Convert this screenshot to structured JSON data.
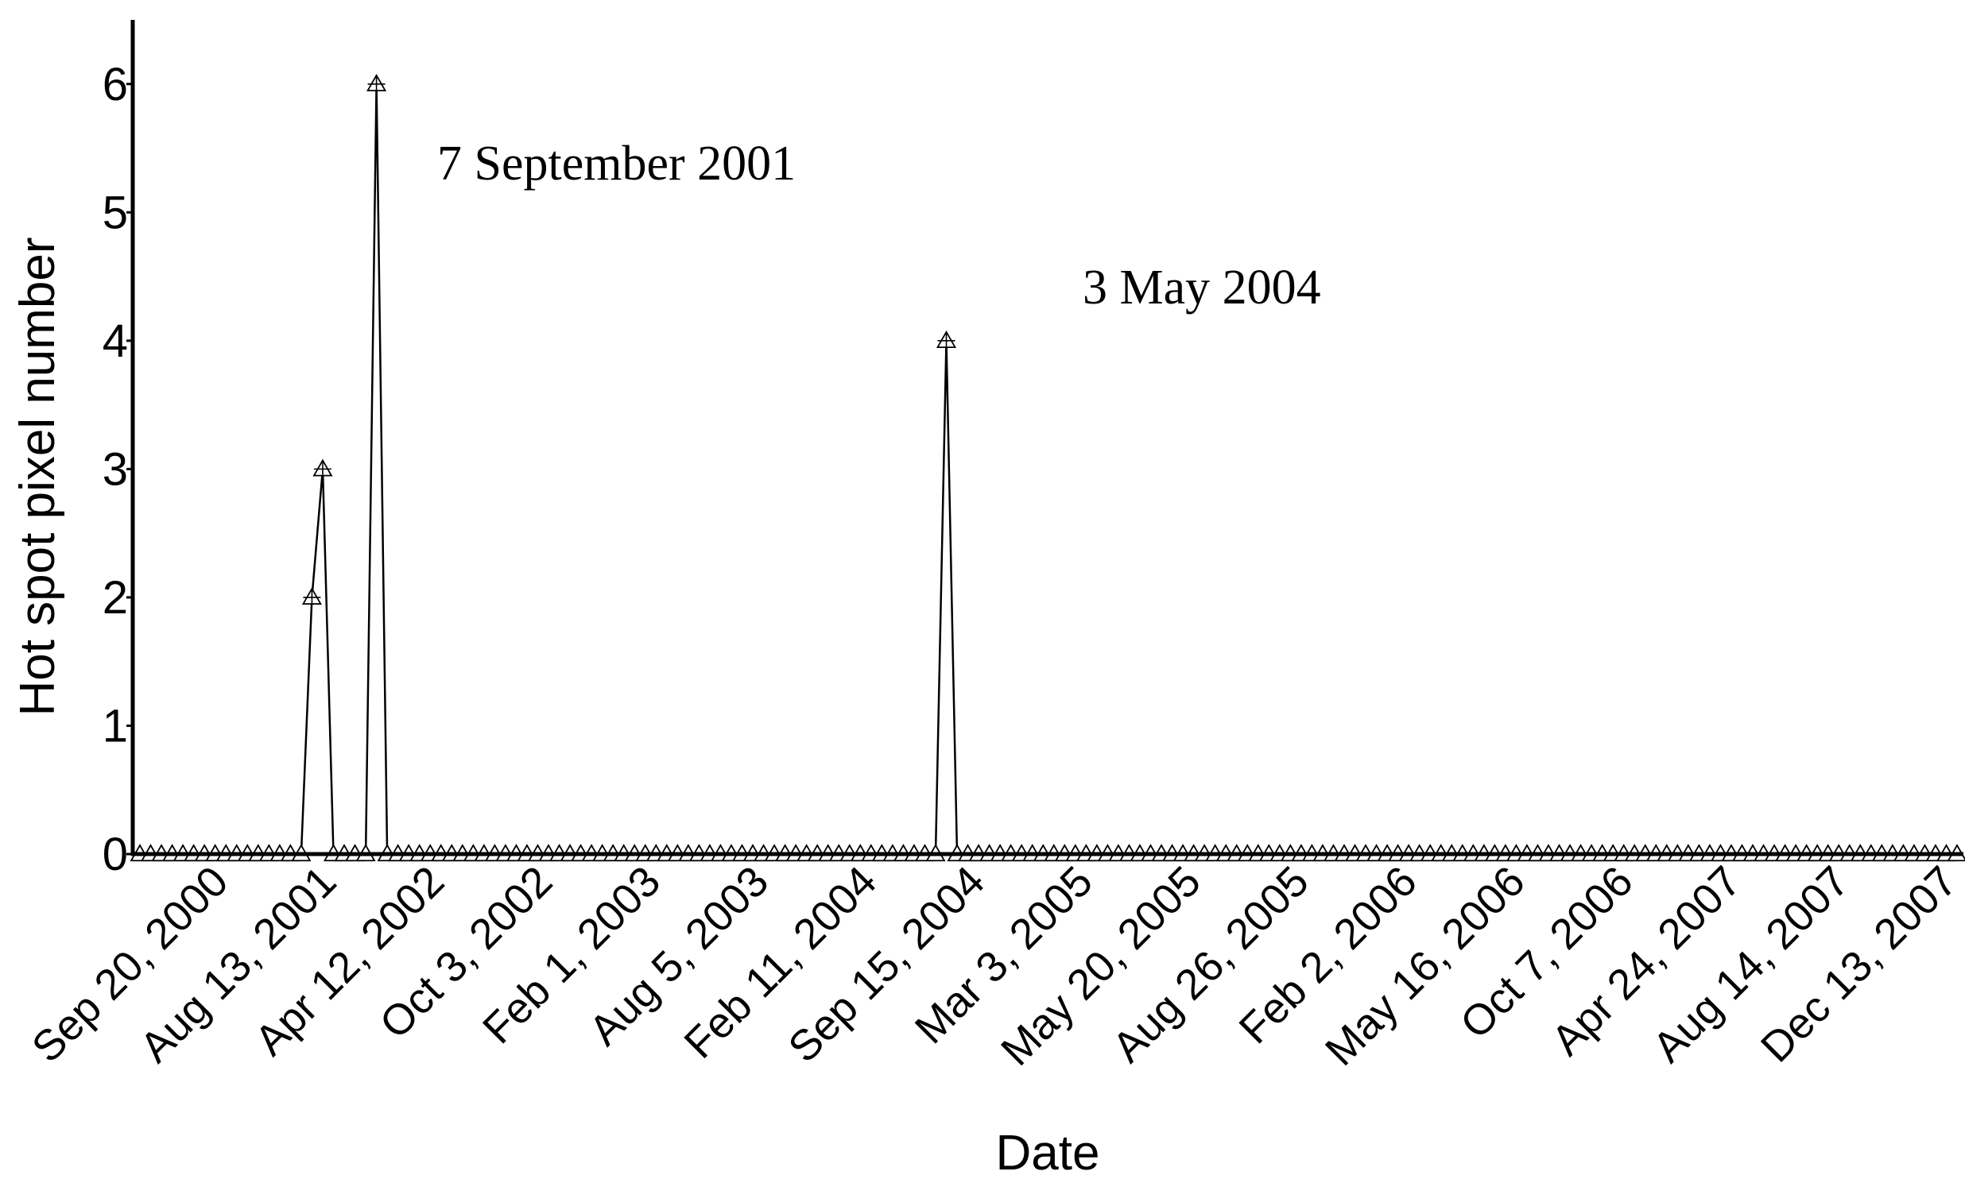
{
  "chart_data": {
    "type": "line",
    "title": "",
    "xlabel": "Date",
    "ylabel": "Hot spot pixel number",
    "ylim": [
      0,
      6.5
    ],
    "yticks": [
      0,
      1,
      2,
      3,
      4,
      5,
      6
    ],
    "x_tick_labels": [
      "Sep 20, 2000",
      "Aug 13, 2001",
      "Apr 12, 2002",
      "Oct 3, 2002",
      "Feb 1, 2003",
      "Aug 5, 2003",
      "Feb 11, 2004",
      "Sep 15, 2004",
      "Mar 3, 2005",
      "May 20, 2005",
      "Aug 26, 2005",
      "Feb 2, 2006",
      "May 16, 2006",
      "Oct 7, 2006",
      "Apr 24, 2007",
      "Aug 14, 2007",
      "Dec 13, 2007"
    ],
    "grid": false,
    "marker": "triangle",
    "series_color": "#000000",
    "observation_count": 170,
    "series": [
      {
        "values": [
          0,
          0,
          0,
          0,
          0,
          0,
          0,
          0,
          0,
          0,
          0,
          0,
          0,
          0,
          0,
          0,
          2,
          3,
          0,
          0,
          0,
          0,
          6,
          0,
          0,
          0,
          0,
          0,
          0,
          0,
          0,
          0,
          0,
          0,
          0,
          0,
          0,
          0,
          0,
          0,
          0,
          0,
          0,
          0,
          0,
          0,
          0,
          0,
          0,
          0,
          0,
          0,
          0,
          0,
          0,
          0,
          0,
          0,
          0,
          0,
          0,
          0,
          0,
          0,
          0,
          0,
          0,
          0,
          0,
          0,
          0,
          0,
          0,
          0,
          0,
          4,
          0,
          0,
          0,
          0,
          0,
          0,
          0,
          0,
          0,
          0,
          0,
          0,
          0,
          0,
          0,
          0,
          0,
          0,
          0,
          0,
          0,
          0,
          0,
          0,
          0,
          0,
          0,
          0,
          0,
          0,
          0,
          0,
          0,
          0,
          0,
          0,
          0,
          0,
          0,
          0,
          0,
          0,
          0,
          0,
          0,
          0,
          0,
          0,
          0,
          0,
          0,
          0,
          0,
          0,
          0,
          0,
          0,
          0,
          0,
          0,
          0,
          0,
          0,
          0,
          0,
          0,
          0,
          0,
          0,
          0,
          0,
          0,
          0,
          0,
          0,
          0,
          0,
          0,
          0,
          0,
          0,
          0,
          0,
          0,
          0,
          0,
          0,
          0,
          0,
          0,
          0,
          0,
          0,
          0
        ]
      }
    ],
    "annotations": [
      {
        "text": "7 September 2001"
      },
      {
        "text": "3 May 2004"
      }
    ]
  }
}
